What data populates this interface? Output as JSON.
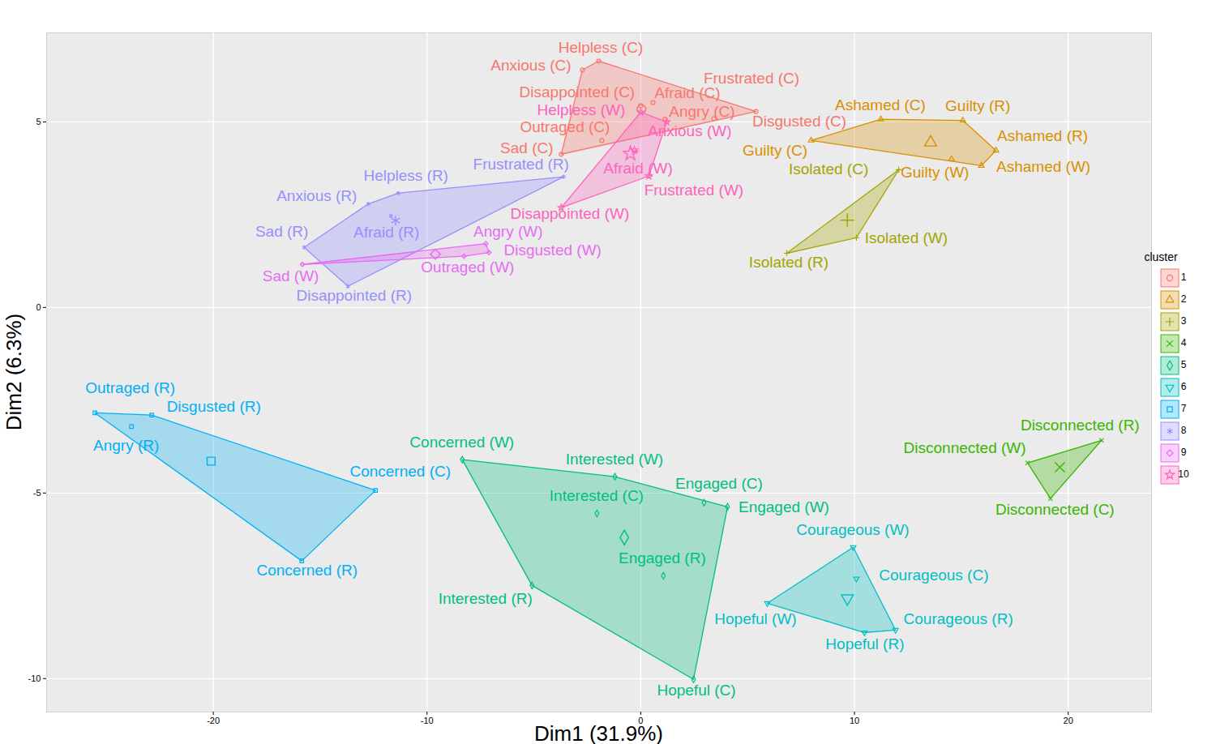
{
  "chart_data": {
    "type": "scatter",
    "xlabel": "Dim1 (31.9%)",
    "ylabel": "Dim2 (6.3%)",
    "xlim": [
      -27.8,
      23.9
    ],
    "ylim": [
      -10.9,
      7.4
    ],
    "xticks": [
      -20,
      -10,
      0,
      10,
      20
    ],
    "yticks": [
      -10,
      -5,
      0,
      5
    ],
    "grid": true,
    "legend": "right",
    "legend_title": "cluster",
    "series": [
      {
        "name": "1",
        "color": "#F8766D",
        "marker": "circle",
        "labels": [
          "Helpless (C)",
          "Anxious (C)",
          "Frustrated (C)",
          "Disgusted (C)",
          "Disappointed (C)",
          "Afraid (C)",
          "Angry (C)",
          "Outraged (C)",
          "Sad (C)"
        ],
        "x": [
          -1.97,
          -2.73,
          5.39,
          3.42,
          0,
          0.57,
          1.14,
          -1.82,
          -3.72
        ],
        "y": [
          6.64,
          6.4,
          5.28,
          5.09,
          5.44,
          5.52,
          5.07,
          4.5,
          4.13
        ]
      },
      {
        "name": "2",
        "color": "#D89000",
        "marker": "triangle",
        "labels": [
          "Ashamed (C)",
          "Guilty (R)",
          "Ashamed (R)",
          "Ashamed (W)",
          "Guilty (C)",
          "Guilty (W)"
        ],
        "x": [
          11.23,
          15.07,
          16.62,
          15.94,
          7.97,
          14.54
        ],
        "y": [
          5.07,
          5.04,
          4.23,
          3.82,
          4.5,
          4.0
        ]
      },
      {
        "name": "3",
        "color": "#A3A500",
        "marker": "plus",
        "labels": [
          "Isolated (C)",
          "Isolated (W)",
          "Isolated (R)"
        ],
        "x": [
          12.07,
          10.09,
          6.83
        ],
        "y": [
          3.71,
          1.88,
          1.46
        ]
      },
      {
        "name": "4",
        "color": "#39B600",
        "marker": "times",
        "labels": [
          "Disconnected (R)",
          "Disconnected (W)",
          "Disconnected (C)"
        ],
        "x": [
          21.56,
          18.1,
          19.17
        ],
        "y": [
          -3.58,
          -4.19,
          -5.15
        ]
      },
      {
        "name": "5",
        "color": "#00BF7D",
        "marker": "diamond",
        "labels": [
          "Concerned (W)",
          "Interested (W)",
          "Interested (C)",
          "Engaged (C)",
          "Engaged (W)",
          "Engaged (R)",
          "Interested (R)",
          "Hopeful (C)"
        ],
        "x": [
          -8.35,
          -1.21,
          -2.05,
          2.96,
          4.06,
          1.06,
          -5.09,
          2.47
        ],
        "y": [
          -4.1,
          -4.56,
          -5.55,
          -5.26,
          -5.37,
          -7.23,
          -7.49,
          -10.02
        ]
      },
      {
        "name": "6",
        "color": "#00BFC4",
        "marker": "triangle-down",
        "labels": [
          "Courageous (W)",
          "Courageous (C)",
          "Courageous (R)",
          "Hopeful (W)",
          "Hopeful (R)"
        ],
        "x": [
          9.94,
          10.09,
          11.92,
          5.92,
          10.47
        ],
        "y": [
          -6.46,
          -7.31,
          -8.69,
          -7.97,
          -8.76
        ]
      },
      {
        "name": "7",
        "color": "#00B0F6",
        "marker": "square",
        "labels": [
          "Outraged (R)",
          "Disgusted (R)",
          "Angry (R)",
          "Concerned (C)",
          "Concerned (R)"
        ],
        "x": [
          -25.54,
          -22.88,
          -23.83,
          -12.41,
          -15.86
        ],
        "y": [
          -2.84,
          -2.9,
          -3.21,
          -4.93,
          -6.83
        ]
      },
      {
        "name": "8",
        "color": "#9590FF",
        "marker": "asterisk",
        "labels": [
          "Helpless (R)",
          "Anxious (R)",
          "Sad (R)",
          "Afraid (R)",
          "Disappointed (R)",
          "Frustrated (R)"
        ],
        "x": [
          -11.35,
          -12.75,
          -15.75,
          -11.69,
          -13.7,
          -3.61
        ],
        "y": [
          3.08,
          2.79,
          1.62,
          2.47,
          0.57,
          3.52
        ]
      },
      {
        "name": "9",
        "color": "#E76BF3",
        "marker": "diamond2",
        "labels": [
          "Sad (W)",
          "Angry (W)",
          "Disgusted (W)",
          "Outraged (W)"
        ],
        "x": [
          -15.83,
          -7.25,
          -7.1,
          -8.27
        ],
        "y": [
          1.16,
          1.72,
          1.48,
          1.38
        ]
      },
      {
        "name": "10",
        "color": "#FF62BC",
        "marker": "star",
        "labels": [
          "Helpless (W)",
          "Anxious (W)",
          "Afraid (W)",
          "Frustrated (W)",
          "Disappointed (W)"
        ],
        "x": [
          0,
          1.21,
          -0.3,
          0.38,
          -3.72
        ],
        "y": [
          5.26,
          5.0,
          4.24,
          3.54,
          2.69
        ]
      }
    ]
  }
}
